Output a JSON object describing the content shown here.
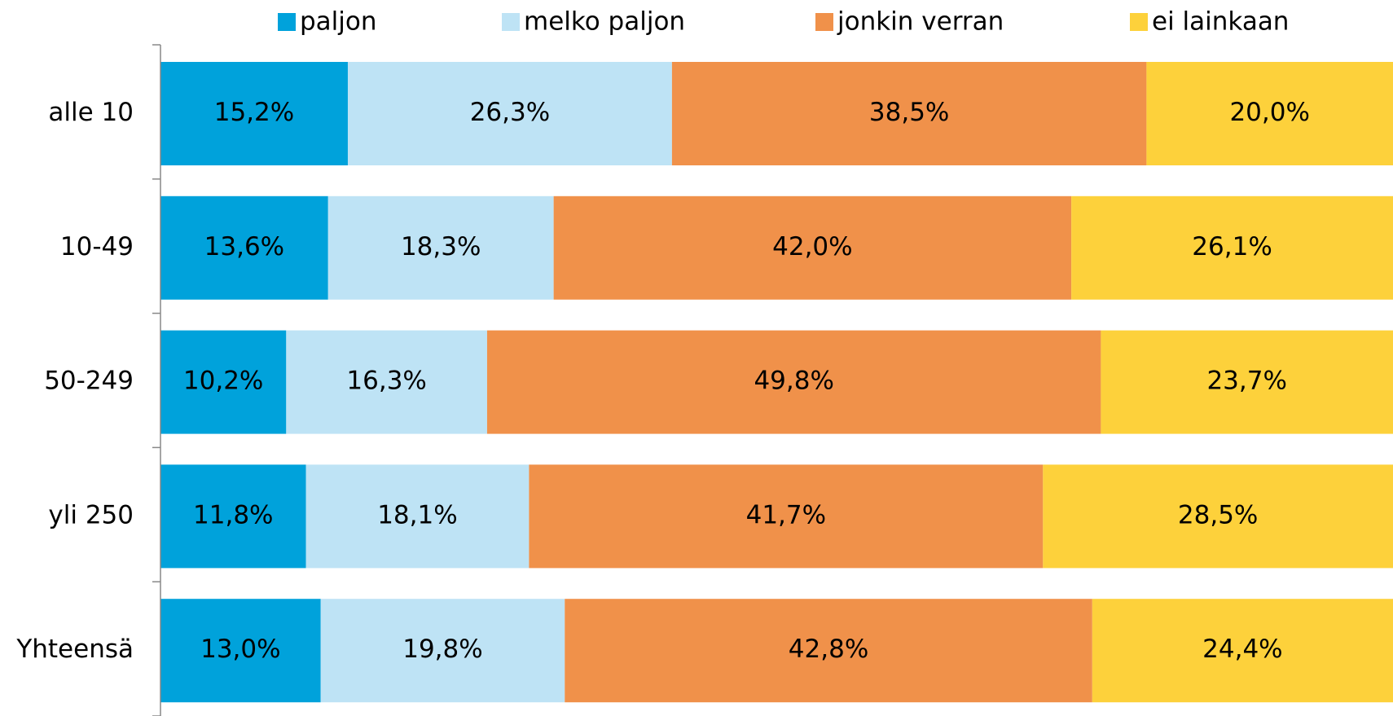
{
  "chart_data": {
    "type": "stacked-bar-horizontal",
    "categories": [
      "alle 10",
      "10-49",
      "50-249",
      "yli 250",
      "Yhteensä"
    ],
    "xlim": [
      0,
      100
    ],
    "legend": "top",
    "series": [
      {
        "name": "paljon",
        "color": "#00a2db",
        "values": [
          15.2,
          13.6,
          10.2,
          11.8,
          13.0
        ],
        "value_labels": [
          "15,2%",
          "13,6%",
          "10,2%",
          "11,8%",
          "13,0%"
        ]
      },
      {
        "name": "melko paljon",
        "color": "#bee3f5",
        "values": [
          26.3,
          18.3,
          16.3,
          18.1,
          19.8
        ],
        "value_labels": [
          "26,3%",
          "18,3%",
          "16,3%",
          "18,1%",
          "19,8%"
        ]
      },
      {
        "name": "jonkin verran",
        "color": "#f0914a",
        "values": [
          38.5,
          42.0,
          49.8,
          41.7,
          42.8
        ],
        "value_labels": [
          "38,5%",
          "42,0%",
          "49,8%",
          "41,7%",
          "42,8%"
        ]
      },
      {
        "name": "ei lainkaan",
        "color": "#fdd13b",
        "values": [
          20.0,
          26.1,
          23.7,
          28.5,
          24.4
        ],
        "value_labels": [
          "20,0%",
          "26,1%",
          "23,7%",
          "28,5%",
          "24,4%"
        ]
      }
    ]
  }
}
